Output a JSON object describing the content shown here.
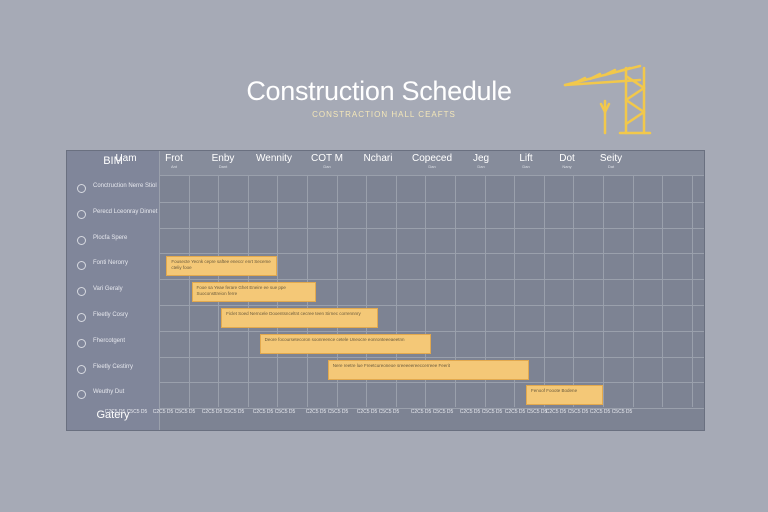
{
  "header": {
    "title": "Construction Schedule",
    "subtitle": "CONSTRACTION HALL CEAFTS"
  },
  "chart_data": {
    "type": "gantt",
    "corner_label": "BIM",
    "columns": [
      {
        "label": "Uam",
        "sub": ""
      },
      {
        "label": "Frot",
        "sub": "Ant"
      },
      {
        "label": "Enby",
        "sub": "Dant"
      },
      {
        "label": "Wennity",
        "sub": ""
      },
      {
        "label": "COT M",
        "sub": "Dan"
      },
      {
        "label": "Nchari",
        "sub": ""
      },
      {
        "label": "Copeced",
        "sub": "Dan"
      },
      {
        "label": "Jeg",
        "sub": "Dan"
      },
      {
        "label": "Lift",
        "sub": "Dan"
      },
      {
        "label": "Dot",
        "sub": "Nany"
      },
      {
        "label": "Seity",
        "sub": "Dat"
      }
    ],
    "rows": [
      "Conctruction Nerre Stiol",
      "Perecd Lceonray Dinnet",
      "Plocfa Spere",
      "Fonti Nerorry",
      "Vari Geraly",
      "Fleetly Cosry",
      "Fhercotgent",
      "Fleetly Cestirry",
      "Weuthy Dut"
    ],
    "tasks": [
      {
        "row": 3,
        "start": 0.25,
        "end": 4.0,
        "text": "Fousecte Yecnk cepre saftee eneccr enrt Seceme cteliy fooe"
      },
      {
        "row": 4,
        "start": 1.1,
        "end": 5.3,
        "text": "Fooe sa Yeae ferare Ghet Eneire ee sue ppe Suoconsttreion ferre"
      },
      {
        "row": 5,
        "start": 2.1,
        "end": 7.4,
        "text": "Ficlet Soed Nerncele Dooentsnceltnt cecree teen Sirnec corrennnry"
      },
      {
        "row": 6,
        "start": 3.4,
        "end": 9.2,
        "text": "Deore focoursetecoron soonreence cetele Uneocre eonronteeeaeetnn"
      },
      {
        "row": 7,
        "start": 5.7,
        "end": 12.5,
        "text": "Nere reetre lue Freetcureoneoe sreeeeereeccerreee Feerit"
      },
      {
        "row": 8,
        "start": 12.4,
        "end": 15.0,
        "text": "Fenoof Fooote Bodene"
      }
    ],
    "footer_label": "Gatery",
    "footer_cells": [
      "C2C5 D5 C5C5 D5",
      "C2C5 D5 C5C5 D5",
      "C2C5 D5 C5C5 D5",
      "C2C5 D5 C5C5 D5",
      "C2C5 D5 C5C5 D5",
      "C2C5 D5 C5C5 D5",
      "C2C5 D5 C5C5 D5",
      "C2C5 D5 C5C5 D5",
      "C2C5 D5 C5C5 D5",
      "C2C5 D5 C5C5 D5",
      "C2C5 D5 C5C5 D5"
    ],
    "colors": {
      "bar": "#f4c877",
      "bar_border": "#e2a94e",
      "grid": "#7d8393",
      "background": "#a6aab6",
      "crane": "#f2c84b"
    }
  }
}
